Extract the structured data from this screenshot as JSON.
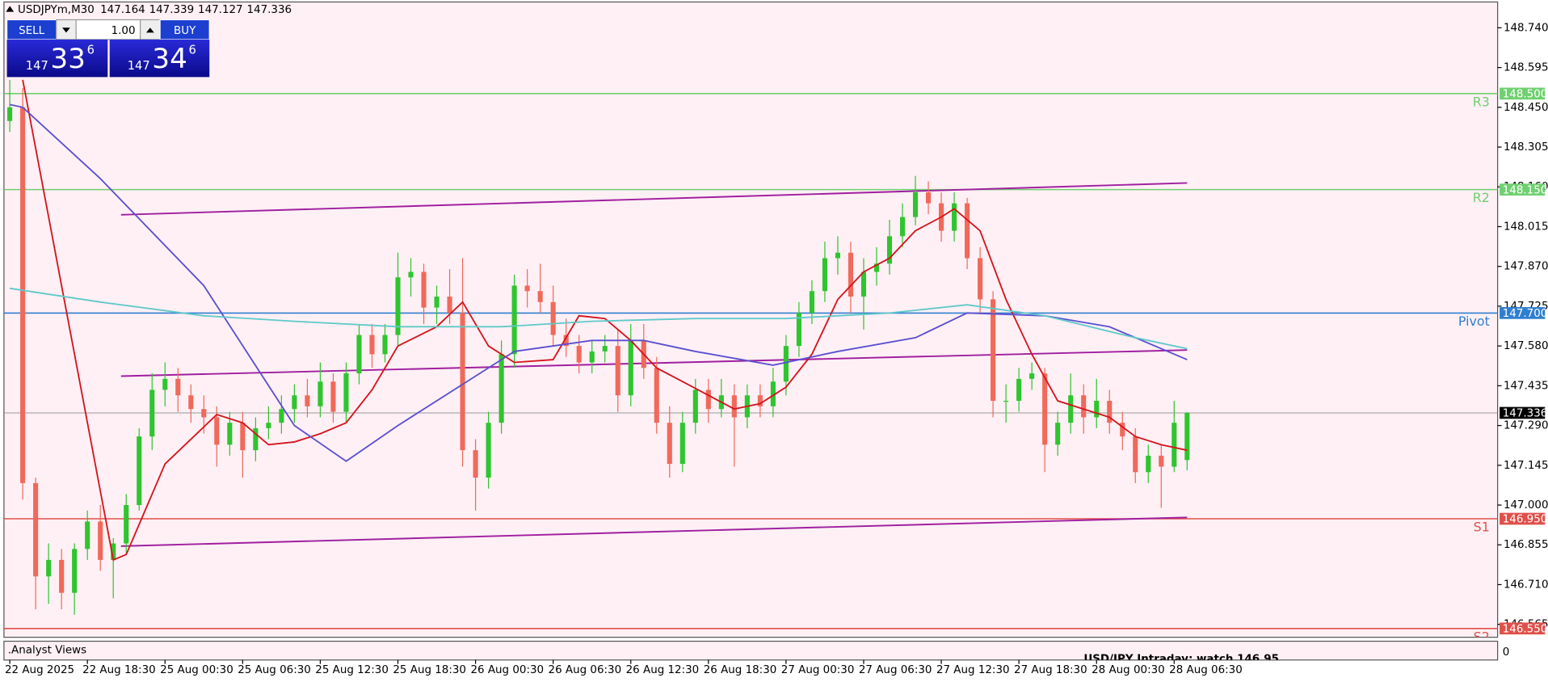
{
  "chart_data": {
    "type": "candlestick",
    "symbol": "USDJPYm,M30",
    "ohlc": [
      147.164,
      147.339,
      147.127,
      147.336
    ],
    "up_color": "#2ec52e",
    "down_color": "#f0695a",
    "xlim": [
      -0.45,
      115
    ],
    "ylim": [
      146.518,
      148.834
    ],
    "xticks": [
      {
        "value": 0,
        "label": "22 Aug 2025"
      },
      {
        "value": 6,
        "label": "22 Aug 18:30"
      },
      {
        "value": 12,
        "label": "25 Aug 00:30"
      },
      {
        "value": 18,
        "label": "25 Aug 06:30"
      },
      {
        "value": 24,
        "label": "25 Aug 12:30"
      },
      {
        "value": 30,
        "label": "25 Aug 18:30"
      },
      {
        "value": 36,
        "label": "26 Aug 00:30"
      },
      {
        "value": 42,
        "label": "26 Aug 06:30"
      },
      {
        "value": 48,
        "label": "26 Aug 12:30"
      },
      {
        "value": 54,
        "label": "26 Aug 18:30"
      },
      {
        "value": 60,
        "label": "27 Aug 00:30"
      },
      {
        "value": 66,
        "label": "27 Aug 06:30"
      },
      {
        "value": 72,
        "label": "27 Aug 12:30"
      },
      {
        "value": 78,
        "label": "27 Aug 18:30"
      },
      {
        "value": 84,
        "label": "28 Aug 00:30"
      },
      {
        "value": 90,
        "label": "28 Aug 06:30"
      }
    ],
    "yticks": [
      {
        "value": 148.74,
        "label": "148.740"
      },
      148.595,
      {
        "value": 148.45,
        "label": "148.450"
      },
      148.305,
      {
        "value": 148.16,
        "label": "148.160"
      },
      148.015,
      {
        "value": 147.87,
        "label": "147.870"
      },
      147.725,
      {
        "value": 147.58,
        "label": "147.580"
      },
      147.435,
      {
        "value": 147.29,
        "label": "147.290"
      },
      147.145,
      {
        "value": 147,
        "label": "147.000"
      },
      146.855,
      {
        "value": 146.71,
        "label": "146.710"
      },
      146.565
    ],
    "candles": [
      [
        148.4,
        148.55,
        148.36,
        148.45
      ],
      [
        148.45,
        148.52,
        147.02,
        147.08
      ],
      [
        147.08,
        147.1,
        146.62,
        146.74
      ],
      [
        146.74,
        146.86,
        146.64,
        146.8
      ],
      [
        146.8,
        146.84,
        146.62,
        146.68
      ],
      [
        146.68,
        146.86,
        146.6,
        146.84
      ],
      [
        146.84,
        146.98,
        146.8,
        146.94
      ],
      [
        146.94,
        147.0,
        146.76,
        146.8
      ],
      [
        146.8,
        146.88,
        146.66,
        146.86
      ],
      [
        146.86,
        147.04,
        146.82,
        147.0
      ],
      [
        147.0,
        147.28,
        146.98,
        147.25
      ],
      [
        147.25,
        147.48,
        147.2,
        147.42
      ],
      [
        147.42,
        147.52,
        147.36,
        147.46
      ],
      [
        147.46,
        147.5,
        147.34,
        147.4
      ],
      [
        147.4,
        147.44,
        147.3,
        147.35
      ],
      [
        147.35,
        147.4,
        147.26,
        147.32
      ],
      [
        147.32,
        147.36,
        147.14,
        147.22
      ],
      [
        147.22,
        147.34,
        147.18,
        147.3
      ],
      [
        147.3,
        147.34,
        147.1,
        147.2
      ],
      [
        147.2,
        147.32,
        147.16,
        147.28
      ],
      [
        147.28,
        147.36,
        147.24,
        147.3
      ],
      [
        147.3,
        147.4,
        147.26,
        147.35
      ],
      [
        147.35,
        147.44,
        147.3,
        147.4
      ],
      [
        147.4,
        147.46,
        147.32,
        147.36
      ],
      [
        147.36,
        147.52,
        147.32,
        147.45
      ],
      [
        147.45,
        147.48,
        147.3,
        147.34
      ],
      [
        147.34,
        147.52,
        147.3,
        147.48
      ],
      [
        147.48,
        147.66,
        147.44,
        147.62
      ],
      [
        147.62,
        147.66,
        147.5,
        147.55
      ],
      [
        147.55,
        147.66,
        147.52,
        147.62
      ],
      [
        147.62,
        147.92,
        147.58,
        147.83
      ],
      [
        147.83,
        147.9,
        147.76,
        147.85
      ],
      [
        147.85,
        147.88,
        147.66,
        147.72
      ],
      [
        147.72,
        147.8,
        147.66,
        147.76
      ],
      [
        147.76,
        147.86,
        147.66,
        147.7
      ],
      [
        147.7,
        147.9,
        147.14,
        147.2
      ],
      [
        147.2,
        147.24,
        146.98,
        147.1
      ],
      [
        147.1,
        147.34,
        147.06,
        147.3
      ],
      [
        147.3,
        147.6,
        147.26,
        147.55
      ],
      [
        147.55,
        147.84,
        147.5,
        147.8
      ],
      [
        147.8,
        147.86,
        147.72,
        147.78
      ],
      [
        147.78,
        147.88,
        147.7,
        147.74
      ],
      [
        147.74,
        147.8,
        147.58,
        147.62
      ],
      [
        147.62,
        147.68,
        147.54,
        147.58
      ],
      [
        147.58,
        147.62,
        147.48,
        147.52
      ],
      [
        147.52,
        147.6,
        147.48,
        147.56
      ],
      [
        147.56,
        147.62,
        147.52,
        147.58
      ],
      [
        147.58,
        147.64,
        147.34,
        147.4
      ],
      [
        147.4,
        147.66,
        147.36,
        147.6
      ],
      [
        147.6,
        147.66,
        147.46,
        147.5
      ],
      [
        147.5,
        147.54,
        147.26,
        147.3
      ],
      [
        147.3,
        147.36,
        147.1,
        147.15
      ],
      [
        147.15,
        147.34,
        147.12,
        147.3
      ],
      [
        147.3,
        147.46,
        147.26,
        147.42
      ],
      [
        147.42,
        147.46,
        147.3,
        147.35
      ],
      [
        147.35,
        147.46,
        147.32,
        147.4
      ],
      [
        147.4,
        147.44,
        147.14,
        147.32
      ],
      [
        147.32,
        147.44,
        147.28,
        147.4
      ],
      [
        147.4,
        147.44,
        147.32,
        147.36
      ],
      [
        147.36,
        147.5,
        147.32,
        147.45
      ],
      [
        147.45,
        147.62,
        147.4,
        147.58
      ],
      [
        147.58,
        147.74,
        147.54,
        147.7
      ],
      [
        147.7,
        147.82,
        147.66,
        147.78
      ],
      [
        147.78,
        147.96,
        147.74,
        147.9
      ],
      [
        147.9,
        147.98,
        147.84,
        147.92
      ],
      [
        147.92,
        147.96,
        147.7,
        147.76
      ],
      [
        147.76,
        147.9,
        147.64,
        147.85
      ],
      [
        147.85,
        147.94,
        147.8,
        147.88
      ],
      [
        147.88,
        148.04,
        147.84,
        147.98
      ],
      [
        147.98,
        148.1,
        147.94,
        148.05
      ],
      [
        148.05,
        148.2,
        148.02,
        148.14
      ],
      [
        148.14,
        148.18,
        148.06,
        148.1
      ],
      [
        148.1,
        148.14,
        147.96,
        148.0
      ],
      [
        148.0,
        148.14,
        147.96,
        148.1
      ],
      [
        148.1,
        148.12,
        147.86,
        147.9
      ],
      [
        147.9,
        147.94,
        147.7,
        147.75
      ],
      [
        147.75,
        147.78,
        147.32,
        147.38
      ],
      [
        147.38,
        147.44,
        147.3,
        147.38
      ],
      [
        147.38,
        147.5,
        147.34,
        147.46
      ],
      [
        147.46,
        147.52,
        147.42,
        147.48
      ],
      [
        147.48,
        147.5,
        147.12,
        147.22
      ],
      [
        147.22,
        147.34,
        147.18,
        147.3
      ],
      [
        147.3,
        147.48,
        147.26,
        147.4
      ],
      [
        147.4,
        147.44,
        147.26,
        147.32
      ],
      [
        147.32,
        147.46,
        147.28,
        147.38
      ],
      [
        147.38,
        147.42,
        147.26,
        147.3
      ],
      [
        147.3,
        147.34,
        147.2,
        147.25
      ],
      [
        147.25,
        147.28,
        147.08,
        147.12
      ],
      [
        147.12,
        147.22,
        147.08,
        147.18
      ],
      [
        147.18,
        147.22,
        146.99,
        147.14
      ],
      [
        147.14,
        147.38,
        147.12,
        147.3
      ],
      [
        147.164,
        147.339,
        147.127,
        147.336
      ]
    ],
    "moving_averages": [
      {
        "color": "#d4141c",
        "x": [
          1,
          8,
          9,
          12,
          16,
          18,
          20,
          22,
          24,
          26,
          28,
          30,
          33,
          35,
          37,
          39,
          42,
          44,
          46,
          48,
          50,
          52,
          54,
          56,
          58,
          60,
          62,
          64,
          66,
          68,
          70,
          72,
          73,
          75,
          77,
          79,
          81,
          83,
          85,
          87,
          89,
          91
        ],
        "values": [
          148.55,
          146.8,
          146.82,
          147.15,
          147.33,
          147.3,
          147.22,
          147.23,
          147.26,
          147.3,
          147.42,
          147.58,
          147.65,
          147.74,
          147.58,
          147.52,
          147.53,
          147.69,
          147.68,
          147.6,
          147.5,
          147.45,
          147.4,
          147.35,
          147.37,
          147.43,
          147.55,
          147.75,
          147.85,
          147.9,
          148.0,
          148.05,
          148.08,
          148.0,
          147.75,
          147.55,
          147.38,
          147.35,
          147.32,
          147.25,
          147.22,
          147.2
        ]
      },
      {
        "color": "#5b4fd0",
        "x": [
          0,
          1,
          7,
          15,
          22,
          26,
          30,
          35,
          39,
          45,
          49,
          53,
          59,
          64,
          70,
          74,
          80,
          85,
          91
        ],
        "values": [
          148.46,
          148.45,
          148.19,
          147.8,
          147.29,
          147.16,
          147.29,
          147.44,
          147.56,
          147.6,
          147.6,
          147.56,
          147.51,
          147.56,
          147.61,
          147.7,
          147.69,
          147.65,
          147.53
        ]
      },
      {
        "color": "#5fc9c9",
        "x": [
          0,
          7,
          15,
          22,
          30,
          38,
          45,
          53,
          60,
          68,
          74,
          80,
          87,
          91
        ],
        "values": [
          147.79,
          147.74,
          147.69,
          147.67,
          147.65,
          147.65,
          147.67,
          147.68,
          147.68,
          147.7,
          147.73,
          147.69,
          147.61,
          147.57
        ]
      }
    ],
    "channels": [
      {
        "color": "#a01ea0",
        "x": [
          8.6,
          91
        ],
        "values": [
          148.058,
          148.174
        ]
      },
      {
        "color": "#a01ea0",
        "x": [
          8.6,
          91
        ],
        "values": [
          147.47,
          147.565
        ]
      },
      {
        "color": "#a01ea0",
        "x": [
          8.6,
          91
        ],
        "values": [
          146.85,
          146.955
        ]
      }
    ],
    "levels": [
      {
        "name": "R3",
        "price": {
          "value": 148.5,
          "label": "148.500"
        },
        "color": "#6fd06f"
      },
      {
        "name": "R2",
        "price": {
          "value": 148.15,
          "label": "148.150"
        },
        "color": "#6fd06f"
      },
      {
        "name": "Pivot",
        "price": {
          "value": 147.7,
          "label": "147.700"
        },
        "color": "#2f7fd0"
      },
      {
        "name": "S1",
        "price": {
          "value": 146.95,
          "label": "146.950"
        },
        "color": "#e0504a"
      },
      {
        "name": "S2",
        "price": {
          "value": 146.55,
          "label": "146.550"
        },
        "color": "#e0504a"
      }
    ],
    "last_price": 147.336
  },
  "trade_panel": {
    "sell": "SELL",
    "buy": "BUY",
    "lot": "1.00",
    "sell_price": {
      "big": "147",
      "main": "33",
      "pip": "6"
    },
    "buy_price": {
      "big": "147",
      "main": "34",
      "pip": "6"
    }
  },
  "indicator_panel": {
    "title": ".Analyst Views",
    "note": "USD/JPY Intraday: watch 146.95",
    "yticks": [
      0
    ]
  }
}
